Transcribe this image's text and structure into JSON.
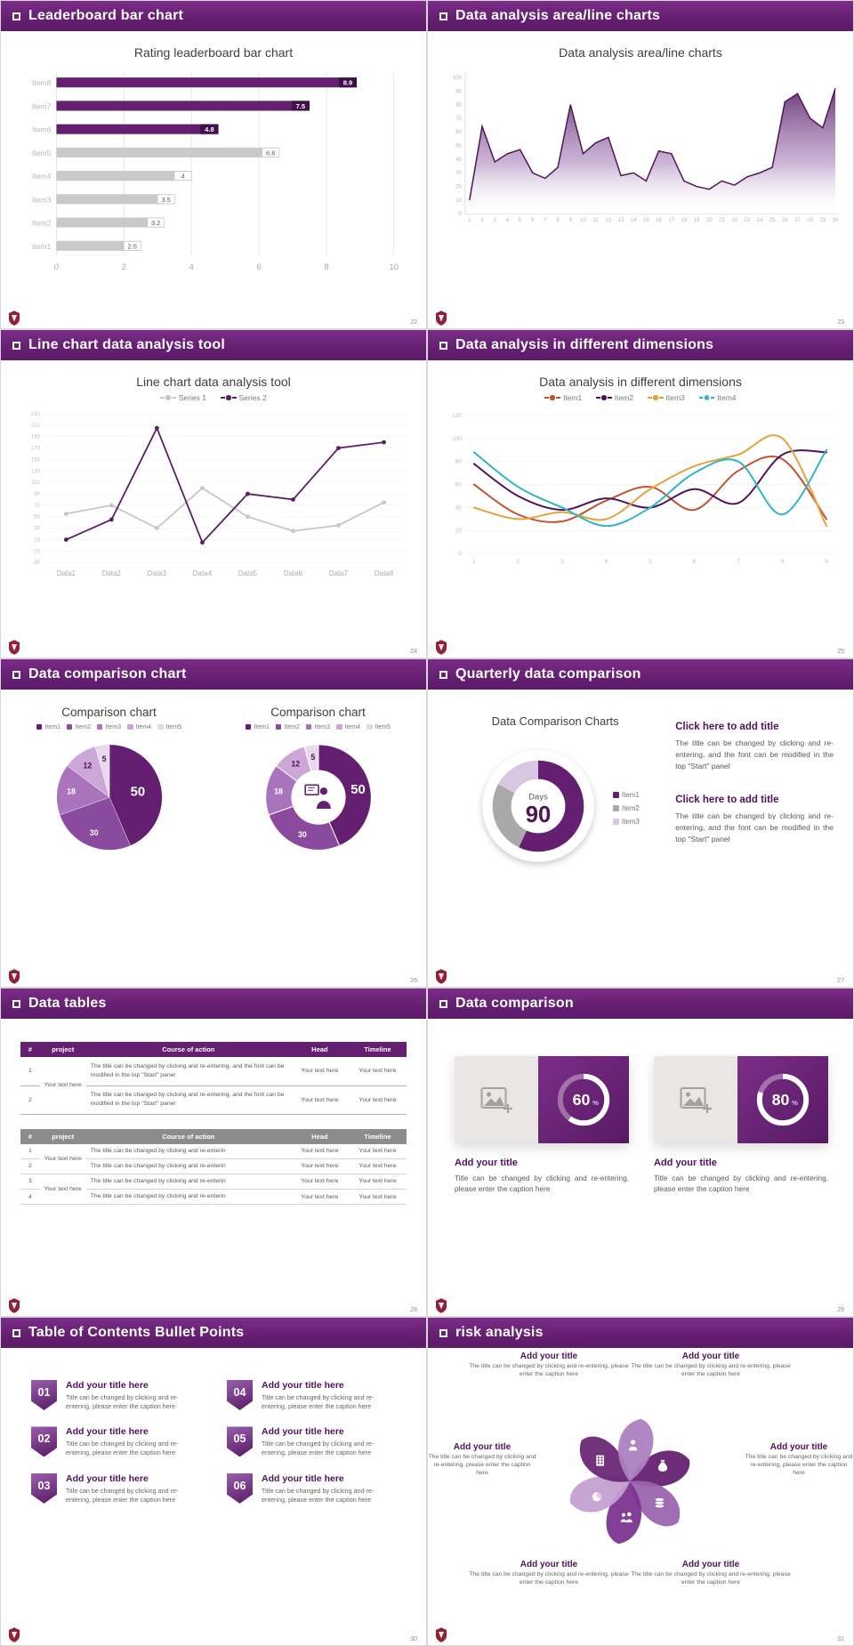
{
  "theme": {
    "purple": "#641f70",
    "purple_dark": "#3f1049",
    "purple_mid": "#8a4a9e",
    "purple_light": "#a974bb",
    "purple_pale": "#cda6d8",
    "purple_faint": "#e8d8ee",
    "gray_bar": "#c9c9c9",
    "logo_red": "#8f2236"
  },
  "slides": [
    {
      "header": "Leaderboard bar chart",
      "page": "22",
      "chart": {
        "type": "bar",
        "title": "Rating leaderboard bar chart",
        "categories": [
          "Item8",
          "Item7",
          "Item6",
          "Item5",
          "Item4",
          "Item3",
          "Item2",
          "Item1"
        ],
        "values": [
          8.9,
          7.5,
          4.8,
          6.6,
          4,
          3.5,
          3.2,
          2.5
        ],
        "bar_colors": [
          "purple",
          "purple",
          "purple",
          "gray",
          "gray",
          "gray",
          "gray",
          "gray"
        ],
        "xticks": [
          0,
          2,
          4,
          6,
          8,
          10
        ],
        "xlim": [
          0,
          10
        ]
      }
    },
    {
      "header": "Data analysis area/line charts",
      "page": "23",
      "chart": {
        "type": "area",
        "title": "Data analysis area/line charts",
        "x": [
          1,
          2,
          3,
          4,
          5,
          6,
          7,
          8,
          9,
          10,
          11,
          12,
          13,
          14,
          15,
          16,
          17,
          18,
          19,
          20,
          21,
          22,
          23,
          24,
          25,
          26,
          27,
          28,
          29,
          30
        ],
        "values": [
          10,
          64,
          38,
          44,
          47,
          30,
          26,
          34,
          80,
          44,
          52,
          56,
          28,
          30,
          24,
          46,
          44,
          24,
          20,
          18,
          24,
          21,
          27,
          30,
          34,
          82,
          88,
          70,
          63,
          92
        ],
        "yticks": [
          0,
          10,
          20,
          30,
          40,
          50,
          60,
          70,
          80,
          90,
          100
        ],
        "ylim": [
          0,
          100
        ]
      }
    },
    {
      "header": "Line chart data analysis tool",
      "page": "24",
      "chart": {
        "type": "line",
        "title": "Line chart data analysis tool",
        "categories": [
          "Data1",
          "Data2",
          "Data3",
          "Data4",
          "Data5",
          "Data6",
          "Data7",
          "Data8"
        ],
        "series": [
          {
            "name": "Series 1",
            "color": "#c6c6c6",
            "values": [
              55,
              70,
              30,
              100,
              50,
              25,
              35,
              75
            ]
          },
          {
            "name": "Series 2",
            "color": "#5a1e66",
            "values": [
              10,
              45,
              205,
              5,
              90,
              80,
              170,
              180
            ]
          }
        ],
        "yticks": [
          230,
          210,
          190,
          170,
          150,
          130,
          110,
          90,
          70,
          50,
          30,
          10,
          -10,
          -30
        ],
        "ylim": [
          -30,
          230
        ]
      }
    },
    {
      "header": "Data analysis in different dimensions",
      "page": "25",
      "chart": {
        "type": "line",
        "title": "Data analysis in different dimensions",
        "x": [
          1,
          2,
          3,
          4,
          5,
          6,
          7,
          8,
          9
        ],
        "series": [
          {
            "name": "Item1",
            "color": "#c0522e",
            "values": [
              60,
              34,
              28,
              46,
              58,
              38,
              72,
              82,
              30
            ]
          },
          {
            "name": "Item2",
            "color": "#4e1459",
            "values": [
              78,
              50,
              38,
              48,
              40,
              56,
              44,
              86,
              88
            ]
          },
          {
            "name": "Item3",
            "color": "#e5a23c",
            "values": [
              40,
              30,
              36,
              30,
              56,
              76,
              86,
              100,
              24
            ]
          },
          {
            "name": "Item4",
            "color": "#30b4c8",
            "values": [
              88,
              58,
              40,
              24,
              40,
              70,
              80,
              34,
              90
            ]
          }
        ],
        "yticks": [
          0,
          20,
          40,
          60,
          80,
          100,
          120
        ],
        "ylim": [
          0,
          120
        ]
      }
    },
    {
      "header": "Data comparison chart",
      "page": "26",
      "left": {
        "type": "pie",
        "title": "Comparison chart",
        "legend": [
          "Item1",
          "Item2",
          "Item3",
          "Item4",
          "Item5"
        ],
        "values": [
          50,
          30,
          18,
          12,
          5
        ],
        "colors": [
          "#641f70",
          "#8a4a9e",
          "#a974bb",
          "#cda6d8",
          "#e8d8ee"
        ]
      },
      "right": {
        "type": "donut",
        "title": "Comparison chart",
        "legend": [
          "Item1",
          "Item2",
          "Item3",
          "Item4",
          "Item5"
        ],
        "values": [
          50,
          30,
          18,
          12,
          5
        ],
        "colors": [
          "#641f70",
          "#8a4a9e",
          "#a974bb",
          "#cda6d8",
          "#e8d8ee"
        ],
        "center_icon": "presenter-icon"
      }
    },
    {
      "header": "Quarterly data comparison",
      "page": "27",
      "donut": {
        "type": "donut",
        "title": "Data Comparison Charts",
        "center_label": "Days",
        "center_value": "90",
        "legend": [
          "Item1",
          "Item2",
          "Item3"
        ],
        "values": [
          57,
          26,
          17
        ],
        "colors": [
          "#641f70",
          "#a9a9a9",
          "#d9c6e0"
        ]
      },
      "blocks": [
        {
          "title": "Click here to add title",
          "body": "The title can be changed by clicking and re-entering, and the font can be modified in the top \"Start\" panel"
        },
        {
          "title": "Click here to add title",
          "body": "The title can be changed by clicking and re-entering, and the font can be modified in the top \"Start\" panel"
        }
      ]
    },
    {
      "header": "Data tables",
      "page": "28",
      "tables": [
        {
          "style": "purple",
          "columns": [
            "#",
            "project",
            "Course of action",
            "Head",
            "Timeline"
          ],
          "rows": [
            {
              "num": "1",
              "action": "The title can be changed by clicking and re-entering, and the font can be modified in the top \"Start\" panel",
              "head": "Your text here",
              "timeline": "Your text here"
            },
            {
              "num": "2",
              "action": "The title can be changed by clicking and re-entering, and the font can be modified in the top \"Start\" panel",
              "head": "Your text here",
              "timeline": "Your text here"
            }
          ],
          "merged_project": [
            {
              "text": "Your text here",
              "from": 0,
              "span": 2
            }
          ]
        },
        {
          "style": "gray",
          "columns": [
            "#",
            "project",
            "Course of action",
            "Head",
            "Timeline"
          ],
          "rows": [
            {
              "num": "1",
              "action": "The title can be changed by clicking and re-enterin",
              "head": "Your text here",
              "timeline": "Your text here"
            },
            {
              "num": "2",
              "action": "The title can be changed by clicking and re-enterin",
              "head": "Your text here",
              "timeline": "Your text here"
            },
            {
              "num": "3",
              "action": "The title can be changed by clicking and re-enterin",
              "head": "Your text here",
              "timeline": "Your text here"
            },
            {
              "num": "4",
              "action": "The title can be changed by clicking and re-enterin",
              "head": "Your text here",
              "timeline": "Your text here"
            }
          ],
          "merged_project": [
            {
              "text": "Your text here",
              "from": 0,
              "span": 2
            },
            {
              "text": "Your text here",
              "from": 2,
              "span": 2
            }
          ]
        }
      ]
    },
    {
      "header": "Data comparison",
      "page": "29",
      "cards": [
        {
          "percent": 60,
          "title": "Add your title",
          "body": "Title can be changed by clicking and re-entering, please enter the caption here"
        },
        {
          "percent": 80,
          "title": "Add your title",
          "body": "Title can be changed by clicking and re-entering, please enter the caption here"
        }
      ]
    },
    {
      "header": "Table of Contents Bullet Points",
      "page": "30",
      "items": [
        {
          "num": "01",
          "title": "Add your title here",
          "body": "Title can be changed by clicking and re-entering, please enter the caption here"
        },
        {
          "num": "02",
          "title": "Add your title here",
          "body": "Title can be changed by clicking and re-entering, please enter the caption here"
        },
        {
          "num": "03",
          "title": "Add your title here",
          "body": "Title can be changed by clicking and re-entering, please enter the caption here"
        },
        {
          "num": "04",
          "title": "Add your title here",
          "body": "Title can be changed by clicking and re-entering, please enter the caption here"
        },
        {
          "num": "05",
          "title": "Add your title here",
          "body": "Title can be changed by clicking and re-entering, please enter the caption here"
        },
        {
          "num": "06",
          "title": "Add your title here",
          "body": "Title can be changed by clicking and re-entering, please enter the caption here"
        }
      ]
    },
    {
      "header": "risk analysis",
      "page": "31",
      "items": [
        {
          "pos": "tl",
          "icon": "moneybag-icon",
          "title": "Add your title",
          "body": "The title can be changed by clicking and re-entering, please enter the caption here"
        },
        {
          "pos": "tr",
          "icon": "coins-icon",
          "title": "Add your title",
          "body": "The title can be changed by clicking and re-entering, please enter the caption here"
        },
        {
          "pos": "mr",
          "icon": "people-icon",
          "title": "Add your title",
          "body": "The title can be changed by clicking and re-entering, please enter the caption here"
        },
        {
          "pos": "br",
          "icon": "pie-chart-icon",
          "title": "Add your title",
          "body": "The title can be changed by clicking and re-entering, please enter the caption here"
        },
        {
          "pos": "bl",
          "icon": "building-icon",
          "title": "Add your title",
          "body": "The title can be changed by clicking and re-entering, please enter the caption here"
        },
        {
          "pos": "ml",
          "icon": "person-icon",
          "title": "Add your title",
          "body": "The title can be changed by clicking and re-entering, please enter the caption here"
        }
      ]
    }
  ]
}
